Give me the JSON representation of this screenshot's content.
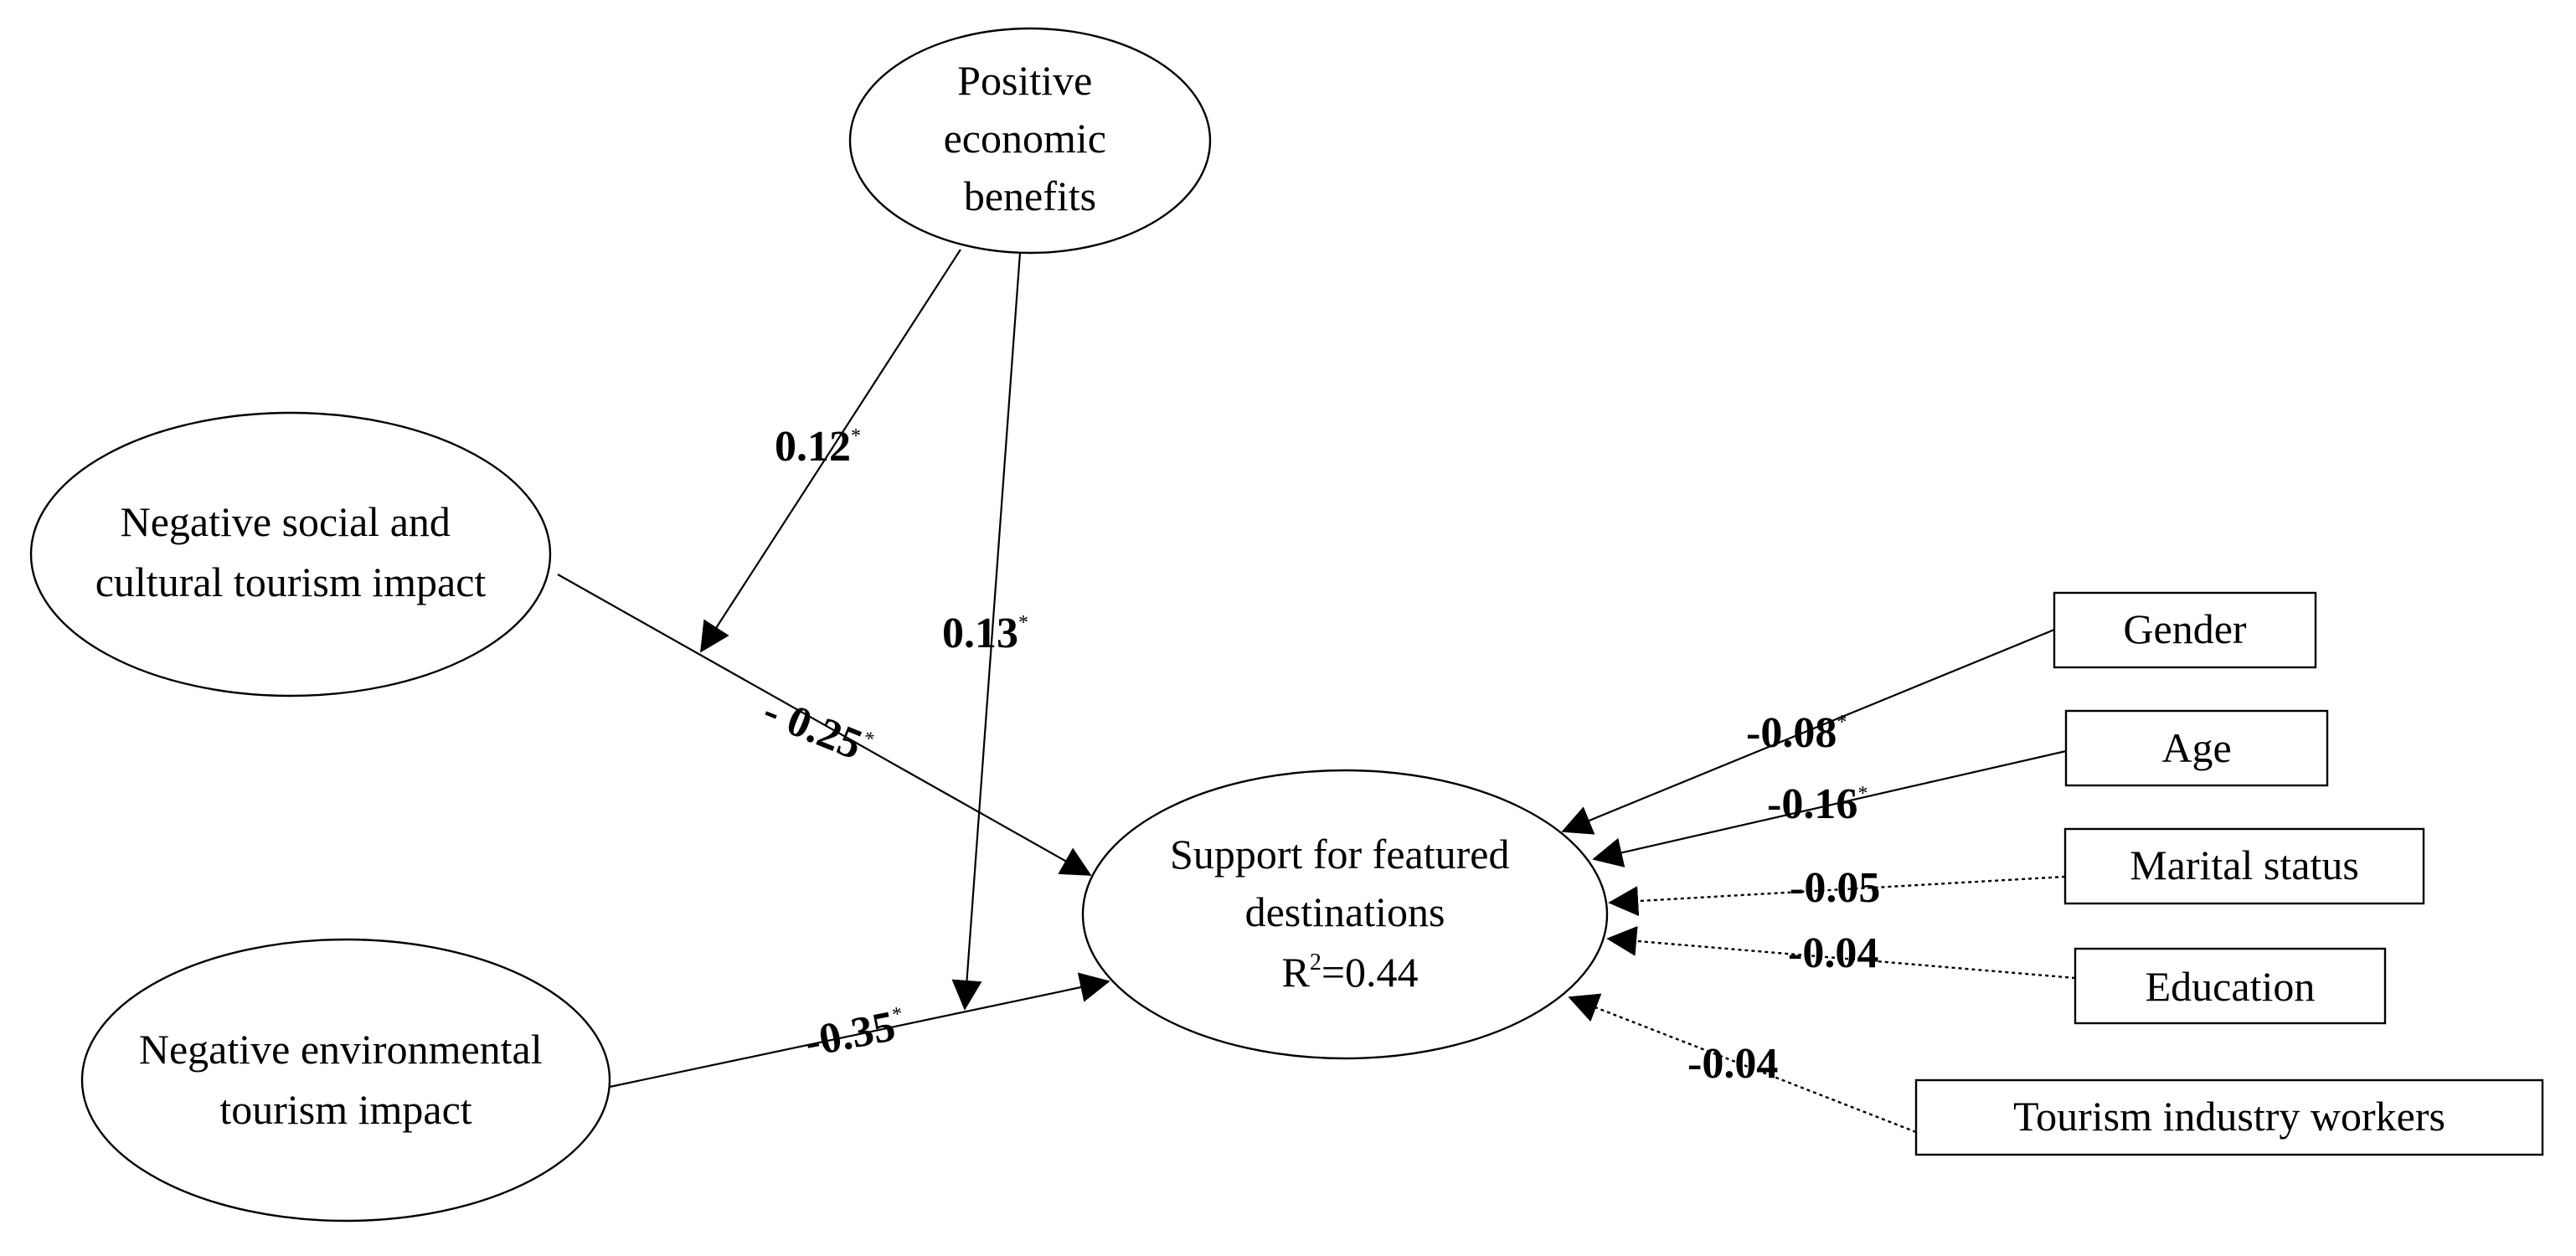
{
  "nodes": {
    "positive_economic": {
      "lines": [
        "Positive",
        "economic",
        "benefits"
      ]
    },
    "negative_social": {
      "lines": [
        "Negative social and",
        "cultural tourism impact"
      ]
    },
    "negative_environmental": {
      "lines": [
        "Negative environmental",
        "tourism impact"
      ]
    },
    "support": {
      "lines": [
        "Support for featured",
        "destinations"
      ],
      "r2_prefix": "R",
      "r2_sup": "2",
      "r2_value": "=0.44"
    },
    "gender": {
      "label": "Gender"
    },
    "age": {
      "label": "Age"
    },
    "marital_status": {
      "label": "Marital status"
    },
    "education": {
      "label": "Education"
    },
    "tourism_workers": {
      "label": "Tourism industry workers"
    }
  },
  "edges": {
    "economic_moderates_social": {
      "value": "0.12",
      "sig": "*"
    },
    "economic_moderates_environmental": {
      "value": "0.13",
      "sig": "*"
    },
    "social_to_support": {
      "value": "- 0.25",
      "sig": "*"
    },
    "environmental_to_support": {
      "value": "-0.35",
      "sig": "*"
    },
    "gender_to_support": {
      "value": "-0.08",
      "sig": "*"
    },
    "age_to_support": {
      "value": "-0.16",
      "sig": "*"
    },
    "marital_to_support": {
      "value": "-0.05",
      "sig": ""
    },
    "education_to_support": {
      "value": "-0.04",
      "sig": ""
    },
    "workers_to_support": {
      "value": "-0.04",
      "sig": ""
    }
  }
}
